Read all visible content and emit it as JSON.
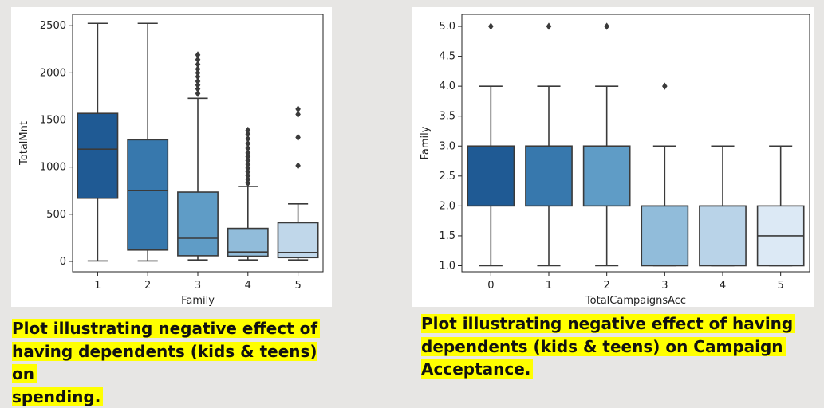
{
  "chart_data": [
    {
      "type": "box",
      "xlabel": "Family",
      "ylabel": "TotalMnt",
      "categories": [
        "1",
        "2",
        "3",
        "4",
        "5"
      ],
      "ylim": [
        -110,
        2620
      ],
      "yticks": [
        0,
        500,
        1000,
        1500,
        2000,
        2500
      ],
      "colors": [
        "#1f5a94",
        "#3778ad",
        "#5f9cc6",
        "#91bcda",
        "#c0d7ea"
      ],
      "boxes": [
        {
          "category": "1",
          "whisker_low": 5,
          "q1": 670,
          "median": 1190,
          "q3": 1570,
          "whisker_high": 2525,
          "outliers": []
        },
        {
          "category": "2",
          "whisker_low": 5,
          "q1": 120,
          "median": 750,
          "q3": 1290,
          "whisker_high": 2525,
          "outliers": []
        },
        {
          "category": "3",
          "whisker_low": 15,
          "q1": 60,
          "median": 245,
          "q3": 735,
          "whisker_high": 1730,
          "outliers": [
            1780,
            1830,
            1870,
            1910,
            1960,
            2000,
            2040,
            2090,
            2140,
            2190
          ]
        },
        {
          "category": "4",
          "whisker_low": 15,
          "q1": 55,
          "median": 100,
          "q3": 350,
          "whisker_high": 795,
          "outliers": [
            830,
            870,
            910,
            950,
            990,
            1030,
            1070,
            1110,
            1150,
            1200,
            1250,
            1300,
            1350,
            1390
          ]
        },
        {
          "category": "5",
          "whisker_low": 15,
          "q1": 40,
          "median": 95,
          "q3": 410,
          "whisker_high": 610,
          "outliers": [
            1015,
            1315,
            1560,
            1615
          ]
        }
      ]
    },
    {
      "type": "box",
      "xlabel": "TotalCampaignsAcc",
      "ylabel": "Family",
      "categories": [
        "0",
        "1",
        "2",
        "3",
        "4",
        "5"
      ],
      "ylim": [
        0.9,
        5.2
      ],
      "yticks": [
        "1.0",
        "1.5",
        "2.0",
        "2.5",
        "3.0",
        "3.5",
        "4.0",
        "4.5",
        "5.0"
      ],
      "colors": [
        "#1f5a94",
        "#3778ad",
        "#5f9cc6",
        "#91bcda",
        "#b9d3e8",
        "#dce9f5"
      ],
      "boxes": [
        {
          "category": "0",
          "whisker_low": 1,
          "q1": 2,
          "median": 3,
          "q3": 3,
          "whisker_high": 4,
          "outliers": [
            5
          ]
        },
        {
          "category": "1",
          "whisker_low": 1,
          "q1": 2,
          "median": 3,
          "q3": 3,
          "whisker_high": 4,
          "outliers": [
            5
          ]
        },
        {
          "category": "2",
          "whisker_low": 1,
          "q1": 2,
          "median": 3,
          "q3": 3,
          "whisker_high": 4,
          "outliers": [
            5
          ]
        },
        {
          "category": "3",
          "whisker_low": 1,
          "q1": 1,
          "median": 2,
          "q3": 2,
          "whisker_high": 3,
          "outliers": [
            4
          ]
        },
        {
          "category": "4",
          "whisker_low": 1,
          "q1": 1,
          "median": 2,
          "q3": 2,
          "whisker_high": 3,
          "outliers": []
        },
        {
          "category": "5",
          "whisker_low": 1,
          "q1": 1,
          "median": 1.5,
          "q3": 2,
          "whisker_high": 3,
          "outliers": []
        }
      ]
    }
  ],
  "captions": {
    "left": [
      "Plot illustrating negative effect of",
      "having dependents (kids & teens) on",
      "spending."
    ],
    "right": [
      "Plot illustrating negative effect of having",
      "dependents (kids & teens) on Campaign",
      "Acceptance."
    ]
  }
}
